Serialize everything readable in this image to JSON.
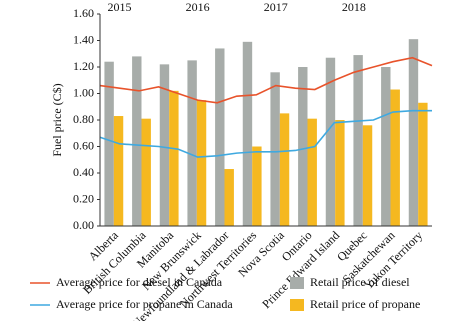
{
  "chart_data": {
    "type": "bar",
    "y_label": "Fuel price (C$)",
    "categories": [
      "Alberta",
      "British Columbia",
      "Manitoba",
      "New Brunswick",
      "Newfoundland & Labrador",
      "Northwest Territories",
      "Nova Scotia",
      "Ontario",
      "Prince Edward Island",
      "Quebec",
      "Saskatchewan",
      "Yukon Territory"
    ],
    "series": [
      {
        "name": "Retail price of diesel",
        "color": "#a7aca9",
        "values": [
          1.24,
          1.28,
          1.22,
          1.25,
          1.34,
          1.39,
          1.16,
          1.2,
          1.27,
          1.29,
          1.2,
          1.41
        ]
      },
      {
        "name": "Retail price of propane",
        "color": "#f5b820",
        "values": [
          0.83,
          0.81,
          1.02,
          0.95,
          0.43,
          0.6,
          0.85,
          0.81,
          0.8,
          0.76,
          1.03,
          0.93
        ]
      }
    ],
    "lines": [
      {
        "type": "line",
        "name": "Average price for diesel in Canada",
        "color": "#e8532b",
        "x": [
          2014.75,
          2015,
          2015.25,
          2015.5,
          2015.75,
          2016,
          2016.25,
          2016.5,
          2016.75,
          2017,
          2017.25,
          2017.5,
          2017.75,
          2018,
          2018.25,
          2018.5,
          2018.75,
          2019
        ],
        "values": [
          1.06,
          1.04,
          1.02,
          1.05,
          1.0,
          0.95,
          0.93,
          0.98,
          0.99,
          1.06,
          1.04,
          1.03,
          1.1,
          1.16,
          1.2,
          1.24,
          1.27,
          1.21
        ]
      },
      {
        "type": "line",
        "name": "Average price for propane in Canada",
        "color": "#3fa9e0",
        "x": [
          2014.75,
          2015,
          2015.25,
          2015.5,
          2015.75,
          2016,
          2016.25,
          2016.5,
          2016.75,
          2017,
          2017.25,
          2017.5,
          2017.75,
          2018,
          2018.25,
          2018.5,
          2018.75,
          2019
        ],
        "values": [
          0.67,
          0.62,
          0.61,
          0.6,
          0.58,
          0.52,
          0.53,
          0.55,
          0.56,
          0.56,
          0.57,
          0.6,
          0.78,
          0.79,
          0.8,
          0.86,
          0.87,
          0.87
        ]
      }
    ],
    "ylim": [
      0,
      1.6
    ],
    "yticks": [
      {
        "value": 0,
        "label": "0.00"
      },
      {
        "value": 0.2,
        "label": "0.20"
      },
      {
        "value": 0.4,
        "label": "0.40"
      },
      {
        "value": 0.6,
        "label": "0.60"
      },
      {
        "value": 0.8,
        "label": "0.80"
      },
      {
        "value": 1,
        "label": "1.00"
      },
      {
        "value": 1.2,
        "label": "1.20"
      },
      {
        "value": 1.4,
        "label": "1.40"
      },
      {
        "value": 1.6,
        "label": "1.60"
      }
    ],
    "x2lim": [
      2014.75,
      2019
    ],
    "x2ticks": [
      2015,
      2016,
      2017,
      2018
    ]
  }
}
